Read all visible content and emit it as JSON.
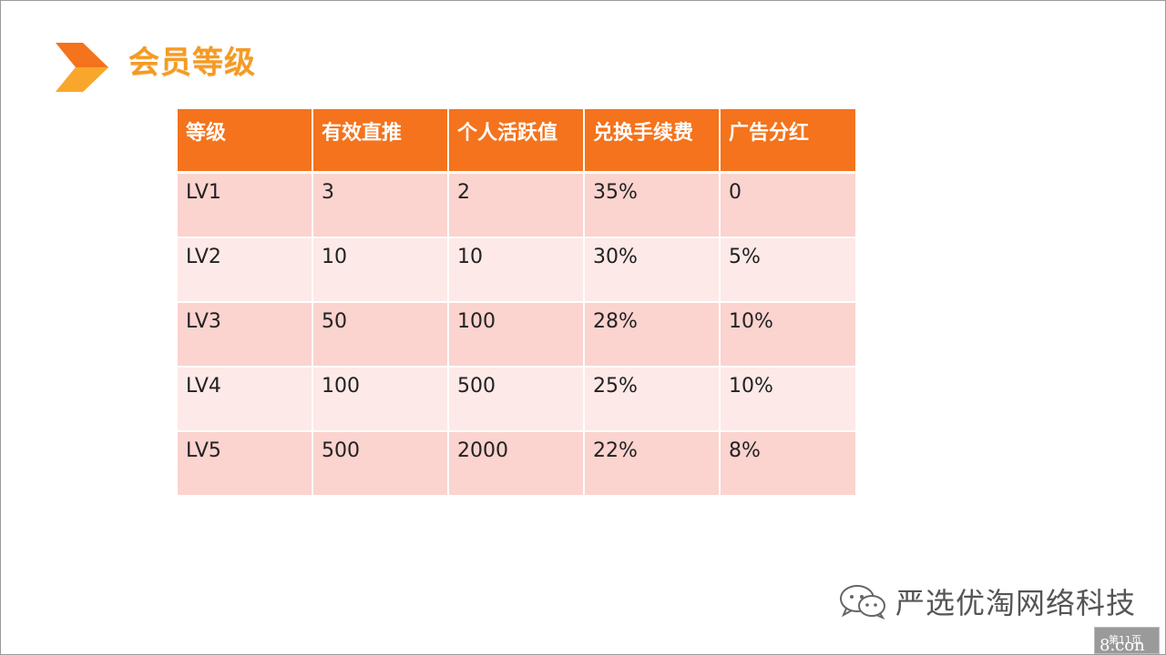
{
  "title": "会员等级",
  "table": {
    "headers": [
      "等级",
      "有效直推",
      "个人活跃值",
      "兑换手续费",
      "广告分红"
    ],
    "rows": [
      [
        "LV1",
        "3",
        "2",
        "35%",
        "0"
      ],
      [
        "LV2",
        "10",
        "10",
        "30%",
        "5%"
      ],
      [
        "LV3",
        "50",
        "100",
        "28%",
        "10%"
      ],
      [
        "LV4",
        "100",
        "500",
        "25%",
        "10%"
      ],
      [
        "LV5",
        "500",
        "2000",
        "22%",
        "8%"
      ]
    ]
  },
  "watermark": {
    "icon": "wechat-icon",
    "text": "严选优淘网络科技"
  },
  "badge": {
    "page_label": "第11页",
    "corner_text": "8.con"
  },
  "colors": {
    "title": "#f59a23",
    "header_bg": "#f4731c",
    "row_odd": "#fbd3cf",
    "row_even": "#fde9e7"
  }
}
